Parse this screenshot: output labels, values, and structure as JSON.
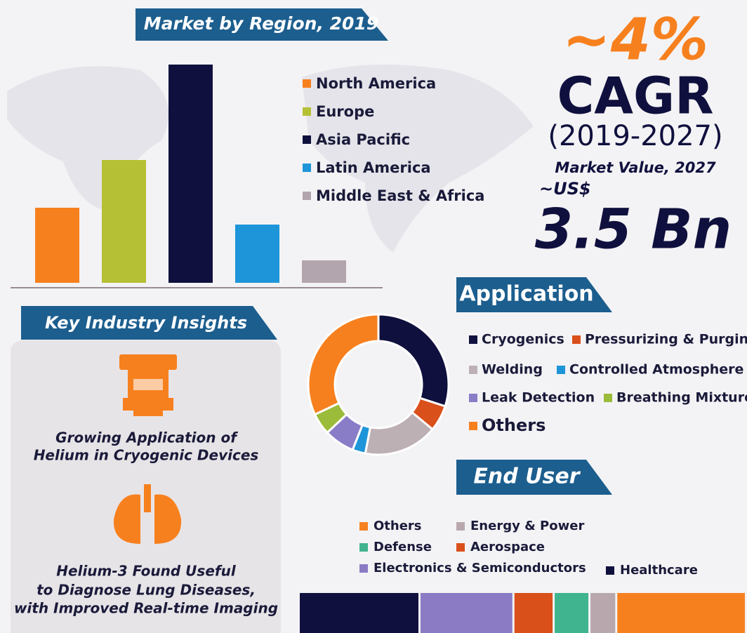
{
  "chart_data": [
    {
      "type": "bar",
      "title": "Market by Region, 2019",
      "series": [
        {
          "name": "North America",
          "color": "#f7801e",
          "values": [
            107
          ]
        },
        {
          "name": "Europe",
          "color": "#b5c034",
          "values": [
            175
          ]
        },
        {
          "name": "Asia Pacific",
          "color": "#10103e",
          "values": [
            311
          ]
        },
        {
          "name": "Latin America",
          "color": "#1e95d8",
          "values": [
            83
          ]
        },
        {
          "name": "Middle East & Africa",
          "color": "#b3a5ad",
          "values": [
            32
          ]
        }
      ]
    },
    {
      "type": "donut",
      "title": "Application",
      "series": [
        {
          "name": "Cryogenics",
          "color": "#10103e",
          "values": [
            30
          ]
        },
        {
          "name": "Pressurizing & Purging",
          "color": "#d9501a",
          "values": [
            6
          ]
        },
        {
          "name": "Welding",
          "color": "#bdb0b5",
          "values": [
            17
          ]
        },
        {
          "name": "Controlled Atmosphere",
          "color": "#1e95d8",
          "values": [
            3
          ]
        },
        {
          "name": "Leak Detection",
          "color": "#8a7dc7",
          "values": [
            7
          ]
        },
        {
          "name": "Breathing Mixtures",
          "color": "#9bbb3a",
          "values": [
            5
          ]
        },
        {
          "name": "Others",
          "color": "#f7801e",
          "values": [
            32
          ]
        }
      ]
    },
    {
      "type": "stacked_bar",
      "title": "End User",
      "series": [
        {
          "name": "Others",
          "color": "#f7801e",
          "values": [
            29
          ]
        },
        {
          "name": "Energy & Power",
          "color": "#b8a8ae",
          "values": [
            6
          ]
        },
        {
          "name": "Defense",
          "color": "#3fb48f",
          "values": [
            8
          ]
        },
        {
          "name": "Aerospace",
          "color": "#d9501a",
          "values": [
            9
          ]
        },
        {
          "name": "Electronics & Semiconductors",
          "color": "#8a7bc4",
          "values": [
            21
          ]
        },
        {
          "name": "Healthcare",
          "color": "#10103e",
          "values": [
            27
          ]
        }
      ]
    }
  ],
  "highlight": {
    "cagr_value": "~4%",
    "cagr_label": "CAGR",
    "period": "(2019-2027)",
    "market_label": "Market Value, 2027",
    "currency": "~US$",
    "market_value": "3.5 Bn"
  },
  "insights": {
    "title": "Key Industry Insights",
    "items": [
      {
        "lines": [
          "Growing Application of",
          "Helium in Cryogenic Devices"
        ]
      },
      {
        "lines": [
          "Helium-3 Found Useful",
          "to Diagnose Lung Diseases,",
          "with Improved Real-time Imaging"
        ]
      }
    ]
  }
}
